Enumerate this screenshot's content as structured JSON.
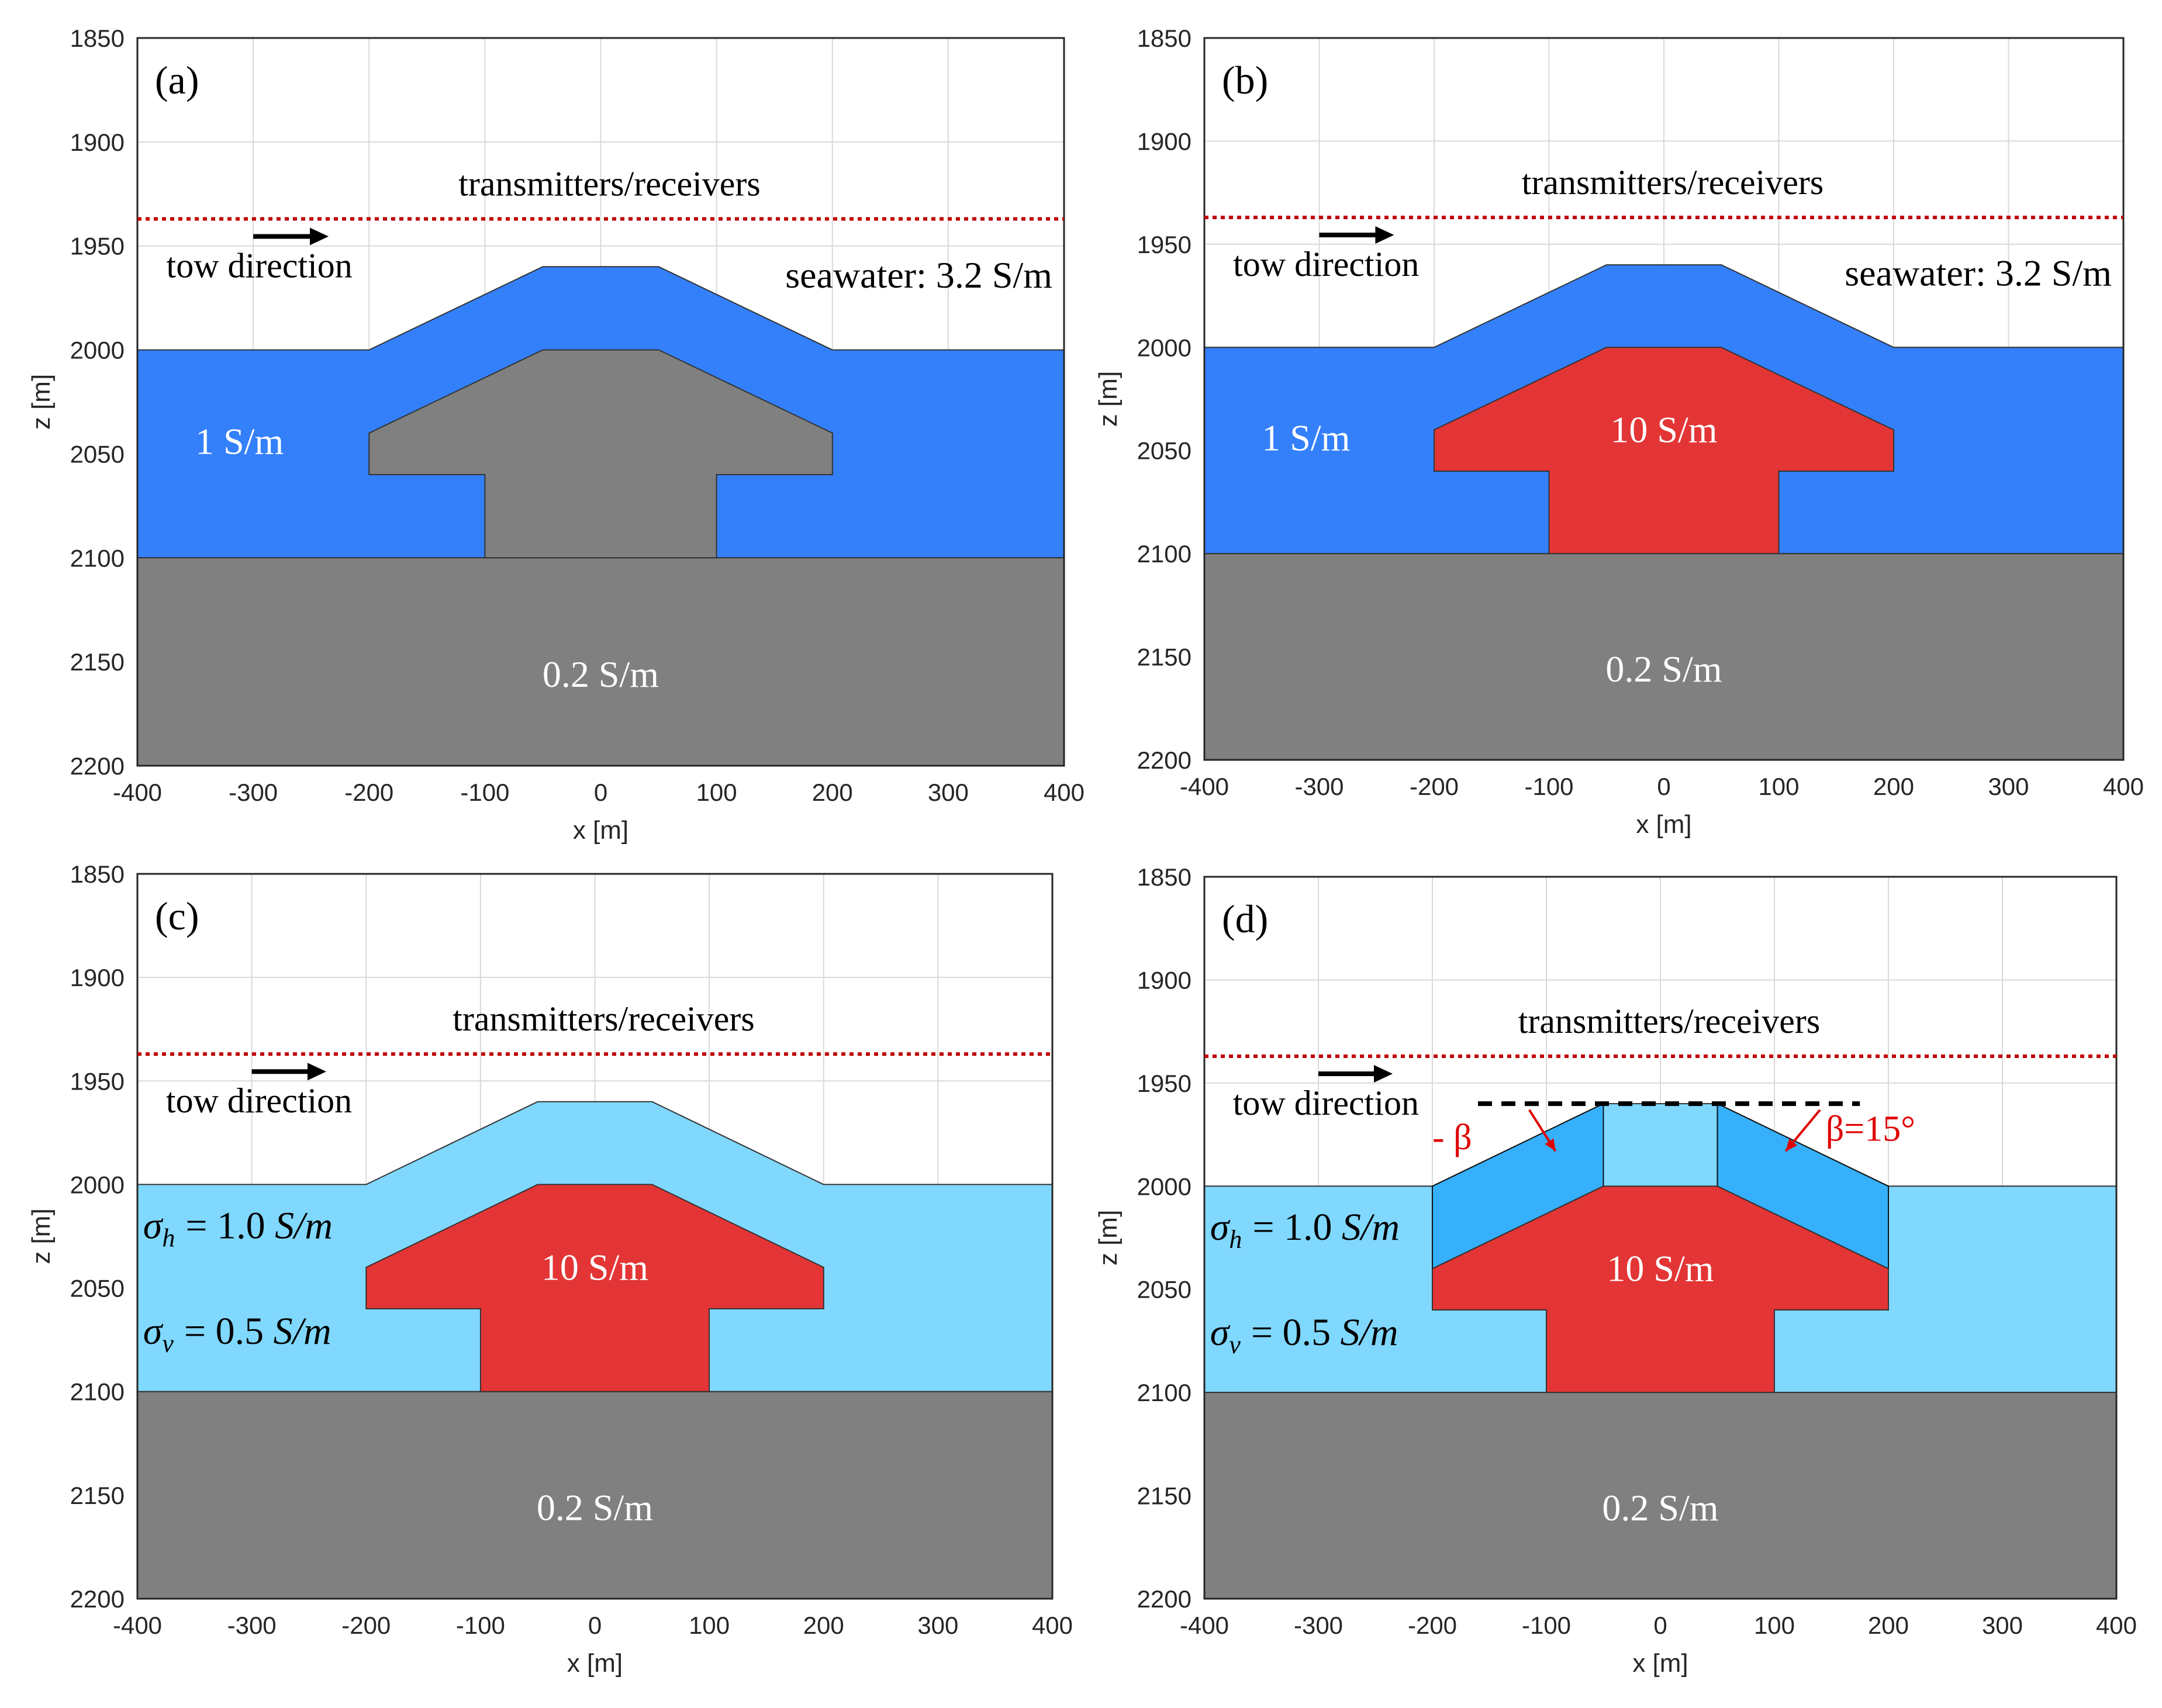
{
  "colors": {
    "seawater_bg": "#ffffff",
    "layer_blue": "#3480fb",
    "layer_lightblue": "#80d8ff",
    "layer_midblue": "#36b0fb",
    "basement_gray": "#808080",
    "target_red": "#e33535",
    "survey_line": "#c00000",
    "grid": "#d9d9d9",
    "beta_red": "#e00000"
  },
  "axes": {
    "x_ticks": [
      "-400",
      "-300",
      "-200",
      "-100",
      "0",
      "100",
      "200",
      "300",
      "400"
    ],
    "z_ticks": [
      "1850",
      "1900",
      "1950",
      "2000",
      "2050",
      "2100",
      "2150",
      "2200"
    ],
    "x_label": "x [m]",
    "z_label": "z [m]",
    "x_range": [
      -400,
      400
    ],
    "z_range": [
      1850,
      2200
    ]
  },
  "labels": {
    "survey": "transmitters/receivers",
    "tow": "tow direction",
    "seawater": "seawater:  3.2 S/m",
    "host_1": "1 S/m",
    "target_10": "10 S/m",
    "basement": "0.2 S/m",
    "sigma_h": "= 1.0",
    "sigma_v": "= 0.5",
    "sigma_unit": "S/m",
    "beta_left": "- β",
    "beta_right": "β=15°"
  },
  "panels": [
    {
      "id": "a",
      "label": "(a)",
      "host_color": "blue",
      "target": "gray",
      "survey_z": 1937
    },
    {
      "id": "b",
      "label": "(b)",
      "host_color": "blue",
      "target": "red",
      "survey_z": 1937
    },
    {
      "id": "c",
      "label": "(c)",
      "host_color": "lightblue",
      "target": "red",
      "survey_z": 1937
    },
    {
      "id": "d",
      "label": "(d)",
      "host_color": "lightblue",
      "target": "red",
      "survey_z": 1937
    }
  ],
  "chart_data": [
    {
      "type": "diagram",
      "panel": "(a)",
      "xlabel": "x [m]",
      "ylabel": "z [m]",
      "xlim": [
        -400,
        400
      ],
      "ylim": [
        2200,
        1850
      ],
      "layers": [
        {
          "name": "seawater",
          "sigma": 3.2
        },
        {
          "name": "host",
          "sigma": 1.0,
          "top_profile_x": [
            -400,
            -200,
            -50,
            50,
            200,
            400
          ],
          "top_profile_z": [
            2000,
            2000,
            1960,
            1960,
            2000,
            2000
          ]
        },
        {
          "name": "target (gray)",
          "sigma": 0.2
        },
        {
          "name": "basement",
          "sigma": 0.2,
          "top_z": 2100
        }
      ],
      "target_outline_x": [
        -100,
        -100,
        -200,
        -200,
        -50,
        50,
        200,
        200,
        100,
        100
      ],
      "target_outline_z": [
        2100,
        2060,
        2060,
        2040,
        2000,
        2000,
        2040,
        2060,
        2060,
        2100
      ]
    },
    {
      "type": "diagram",
      "panel": "(b)",
      "xlabel": "x [m]",
      "ylabel": "z [m]",
      "xlim": [
        -400,
        400
      ],
      "ylim": [
        2200,
        1850
      ],
      "layers": [
        {
          "name": "seawater",
          "sigma": 3.2
        },
        {
          "name": "host",
          "sigma": 1.0
        },
        {
          "name": "target",
          "sigma": 10
        },
        {
          "name": "basement",
          "sigma": 0.2,
          "top_z": 2100
        }
      ]
    },
    {
      "type": "diagram",
      "panel": "(c)",
      "xlabel": "x [m]",
      "ylabel": "z [m]",
      "xlim": [
        -400,
        400
      ],
      "ylim": [
        2200,
        1850
      ],
      "layers": [
        {
          "name": "host anisotropic",
          "sigma_h": 1.0,
          "sigma_v": 0.5
        },
        {
          "name": "target",
          "sigma": 10
        },
        {
          "name": "basement",
          "sigma": 0.2,
          "top_z": 2100
        }
      ]
    },
    {
      "type": "diagram",
      "panel": "(d)",
      "xlabel": "x [m]",
      "ylabel": "z [m]",
      "xlim": [
        -400,
        400
      ],
      "ylim": [
        2200,
        1850
      ],
      "layers": [
        {
          "name": "host anisotropic",
          "sigma_h": 1.0,
          "sigma_v": 0.5
        },
        {
          "name": "tilted blocks",
          "beta_deg": 15
        },
        {
          "name": "target",
          "sigma": 10
        },
        {
          "name": "basement",
          "sigma": 0.2,
          "top_z": 2100
        }
      ]
    }
  ]
}
